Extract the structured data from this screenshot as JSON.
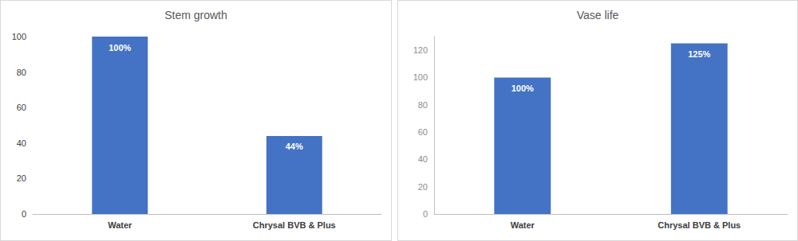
{
  "chart_data": [
    {
      "type": "bar",
      "title": "Stem growth",
      "categories": [
        "Water",
        "Chrysal BVB & Plus"
      ],
      "values": [
        100,
        44
      ],
      "value_labels": [
        "100%",
        "44%"
      ],
      "color": "#4472c4",
      "ylim": [
        0,
        100
      ],
      "yticks": [
        0,
        20,
        40,
        60,
        80,
        100
      ],
      "grid": false,
      "data_labels": true
    },
    {
      "type": "bar",
      "title": "Vase life",
      "categories": [
        "Water",
        "Chrysal BVB & Plus"
      ],
      "values": [
        100,
        125
      ],
      "value_labels": [
        "100%",
        "125%"
      ],
      "color": "#4472c4",
      "ylim": [
        0,
        130
      ],
      "yticks": [
        0,
        20,
        40,
        60,
        80,
        100,
        120
      ],
      "grid": false,
      "data_labels": true
    }
  ]
}
